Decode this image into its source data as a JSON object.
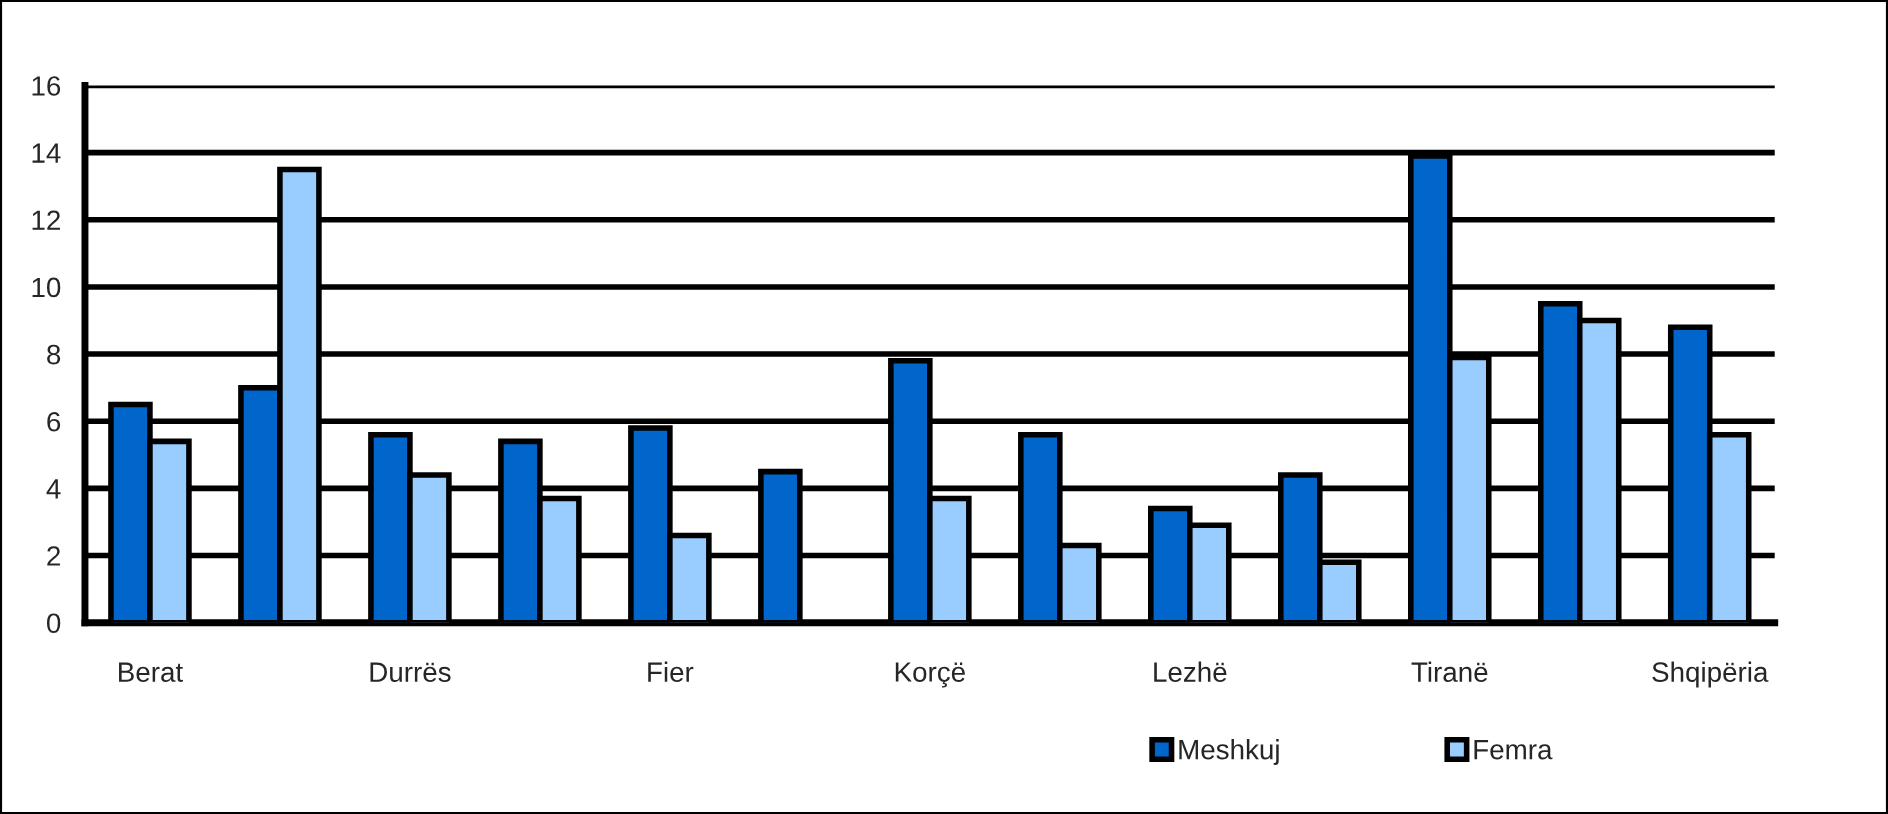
{
  "chart_data": {
    "type": "bar",
    "categories": [
      "Berat",
      null,
      "Durrës",
      null,
      "Fier",
      null,
      "Korçë",
      null,
      "Lezhë",
      null,
      "Tiranë",
      null,
      "Shqipëria"
    ],
    "series": [
      {
        "name": "Meshkuj",
        "color": "#0066cc",
        "values": [
          6.5,
          7.0,
          5.6,
          5.4,
          5.8,
          4.5,
          7.8,
          5.6,
          3.4,
          4.4,
          13.9,
          9.5,
          8.8
        ]
      },
      {
        "name": "Femra",
        "color": "#99ccff",
        "values": [
          5.4,
          13.5,
          4.4,
          3.7,
          2.6,
          null,
          3.7,
          2.3,
          2.9,
          1.8,
          7.9,
          9.0,
          5.6
        ]
      }
    ],
    "ylim": [
      0,
      16
    ],
    "yticks": [
      0,
      2,
      4,
      6,
      8,
      10,
      12,
      14,
      16
    ],
    "grid": "y",
    "legend": "bottom"
  }
}
